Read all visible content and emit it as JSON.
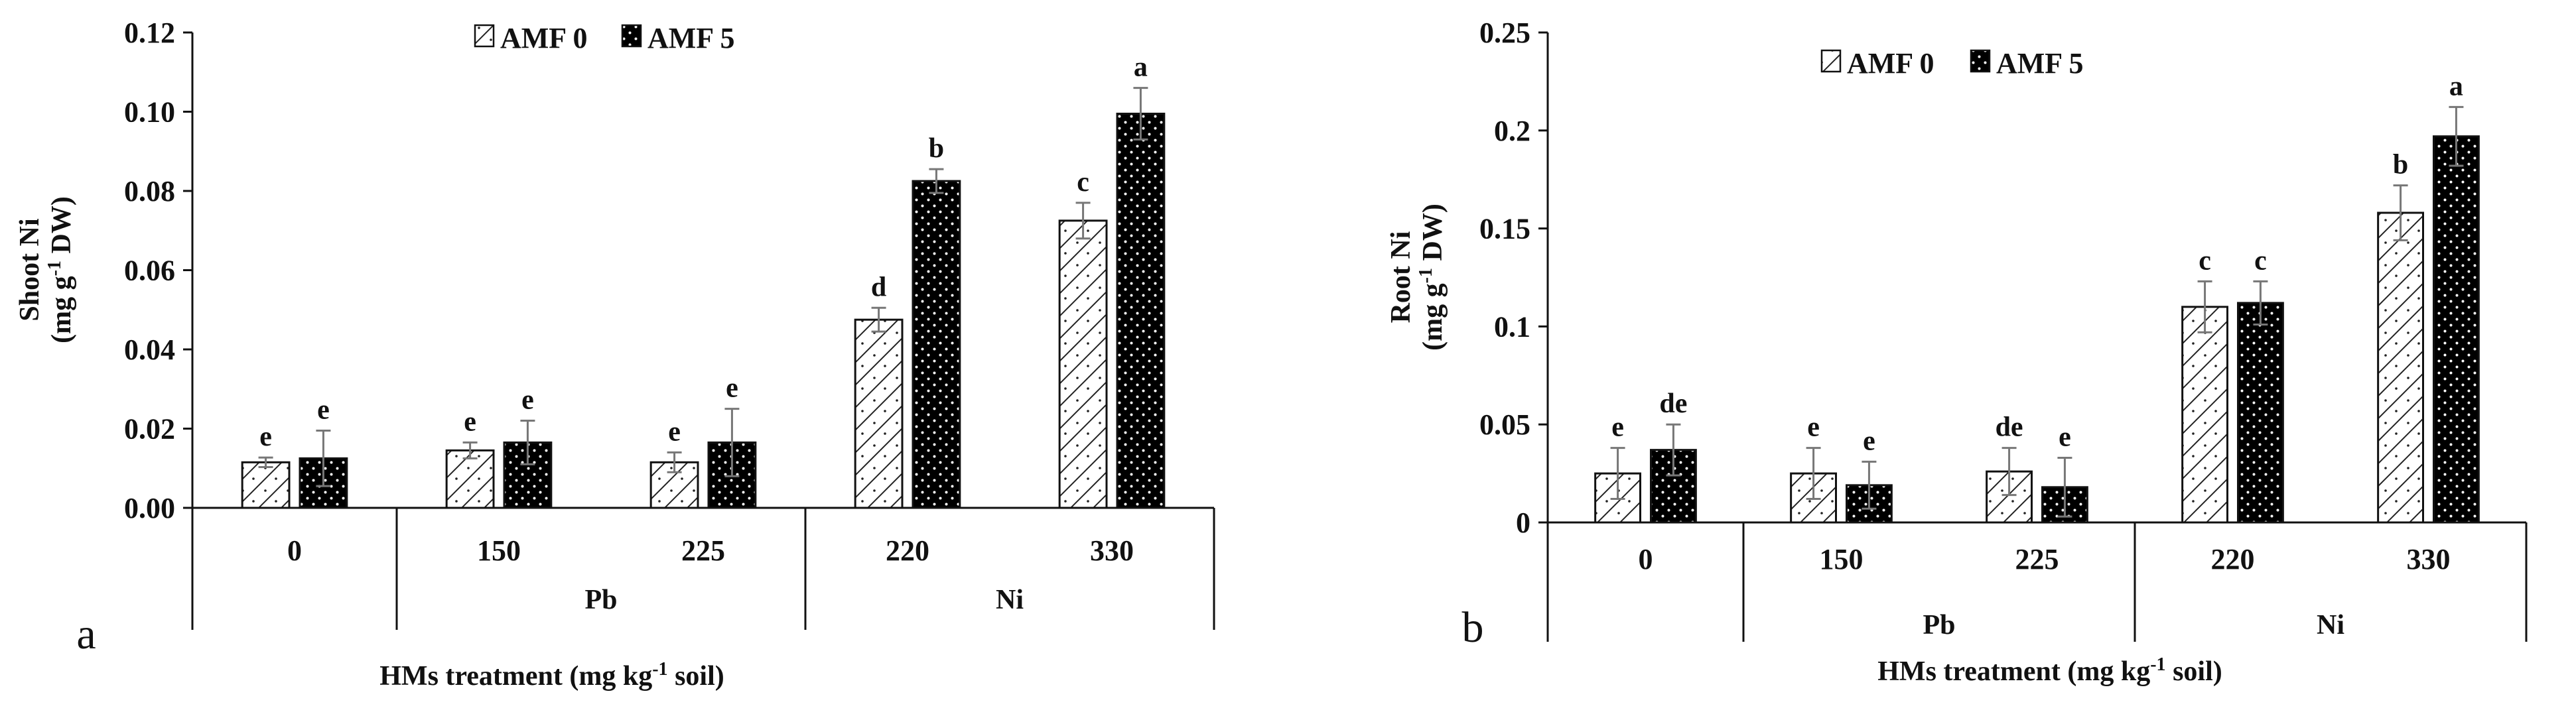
{
  "colors": {
    "ink": "#111111",
    "fill_amf0": "#ffffff",
    "fill_amf5": "#000000"
  },
  "chart_data": [
    {
      "type": "bar",
      "panel_label": "a",
      "ylabel_line1": "Shoot Ni",
      "ylabel_line2_pre": "(mg g",
      "ylabel_line2_sup": "-1",
      "ylabel_line2_post": " DW)",
      "xlabel_pre": "HMs treatment (mg kg",
      "xlabel_sup": "-1",
      "xlabel_post": " soil)",
      "ylim": [
        0,
        0.12
      ],
      "yticks": [
        "0.00",
        "0.02",
        "0.04",
        "0.06",
        "0.08",
        "0.10",
        "0.12"
      ],
      "ytick_values": [
        0,
        0.02,
        0.04,
        0.06,
        0.08,
        0.1,
        0.12
      ],
      "categories": [
        "0",
        "150",
        "225",
        "220",
        "330"
      ],
      "groups": [
        {
          "label": "",
          "span": [
            0,
            0
          ]
        },
        {
          "label": "Pb",
          "span": [
            1,
            2
          ]
        },
        {
          "label": "Ni",
          "span": [
            3,
            4
          ]
        }
      ],
      "legend_position": "top",
      "series": [
        {
          "name": "AMF 0",
          "values": [
            0.0115,
            0.0145,
            0.0115,
            0.0475,
            0.0725
          ],
          "errors": [
            0.0012,
            0.002,
            0.0025,
            0.003,
            0.0045
          ],
          "labels": [
            "e",
            "e",
            "e",
            "d",
            "c"
          ]
        },
        {
          "name": "AMF 5",
          "values": [
            0.0125,
            0.0165,
            0.0165,
            0.0825,
            0.0995
          ],
          "errors": [
            0.007,
            0.0055,
            0.0085,
            0.003,
            0.0065
          ],
          "labels": [
            "e",
            "e",
            "e",
            "b",
            "a"
          ]
        }
      ]
    },
    {
      "type": "bar",
      "panel_label": "b",
      "ylabel_line1": "Root Ni",
      "ylabel_line2_pre": "(mg g",
      "ylabel_line2_sup": "-1",
      "ylabel_line2_post": " DW)",
      "xlabel_pre": "HMs treatment (mg kg",
      "xlabel_sup": "-1",
      "xlabel_post": " soil)",
      "ylim": [
        0,
        0.25
      ],
      "yticks": [
        "0",
        "0.05",
        "0.1",
        "0.15",
        "0.2",
        "0.25"
      ],
      "ytick_values": [
        0,
        0.05,
        0.1,
        0.15,
        0.2,
        0.25
      ],
      "categories": [
        "0",
        "150",
        "225",
        "220",
        "330"
      ],
      "groups": [
        {
          "label": "",
          "span": [
            0,
            0
          ]
        },
        {
          "label": "Pb",
          "span": [
            1,
            2
          ]
        },
        {
          "label": "Ni",
          "span": [
            3,
            4
          ]
        }
      ],
      "legend_position": "top",
      "series": [
        {
          "name": "AMF 0",
          "values": [
            0.025,
            0.025,
            0.026,
            0.11,
            0.158
          ],
          "errors": [
            0.013,
            0.013,
            0.012,
            0.013,
            0.014
          ],
          "labels": [
            "e",
            "e",
            "de",
            "c",
            "b"
          ]
        },
        {
          "name": "AMF 5",
          "values": [
            0.037,
            0.019,
            0.018,
            0.112,
            0.197
          ],
          "errors": [
            0.013,
            0.012,
            0.015,
            0.011,
            0.015
          ],
          "labels": [
            "de",
            "e",
            "e",
            "c",
            "a"
          ]
        }
      ]
    }
  ]
}
